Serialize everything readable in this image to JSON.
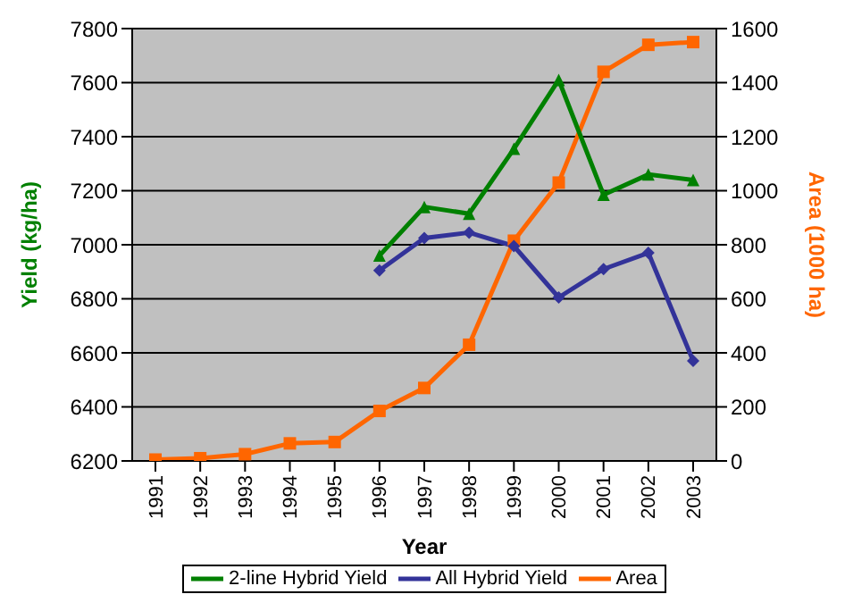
{
  "chart_data": {
    "type": "line",
    "xlabel": "Year",
    "ylabel": "Yield (kg/ha)",
    "y2label": "Area (1000 ha)",
    "categories": [
      "1991",
      "1992",
      "1993",
      "1994",
      "1995",
      "1996",
      "1997",
      "1998",
      "1999",
      "2000",
      "2001",
      "2002",
      "2003"
    ],
    "series": [
      {
        "name": "2-line Hybrid Yield",
        "color": "#008000",
        "marker": "triangle",
        "values": [
          null,
          null,
          null,
          null,
          null,
          6960,
          7140,
          7115,
          7355,
          7610,
          7185,
          7260,
          7240
        ]
      },
      {
        "name": "All Hybrid Yield",
        "color": "#333399",
        "marker": "diamond",
        "values": [
          null,
          null,
          null,
          null,
          null,
          6905,
          7025,
          7045,
          6995,
          6805,
          6910,
          6970,
          6570
        ]
      },
      {
        "name": "Area",
        "color": "#ff6600",
        "marker": "square",
        "axis": "y2",
        "values": [
          5,
          10,
          25,
          65,
          70,
          185,
          270,
          430,
          815,
          1030,
          1440,
          1540,
          1550
        ]
      }
    ],
    "ylim": [
      6200,
      7800
    ],
    "yticks": [
      6200,
      6400,
      6600,
      6800,
      7000,
      7200,
      7400,
      7600,
      7800
    ],
    "y2lim": [
      0,
      1600
    ],
    "y2ticks": [
      0,
      200,
      400,
      600,
      800,
      1000,
      1200,
      1400,
      1600
    ],
    "grid": "y",
    "legend": "bottom",
    "line_style": "solid"
  }
}
